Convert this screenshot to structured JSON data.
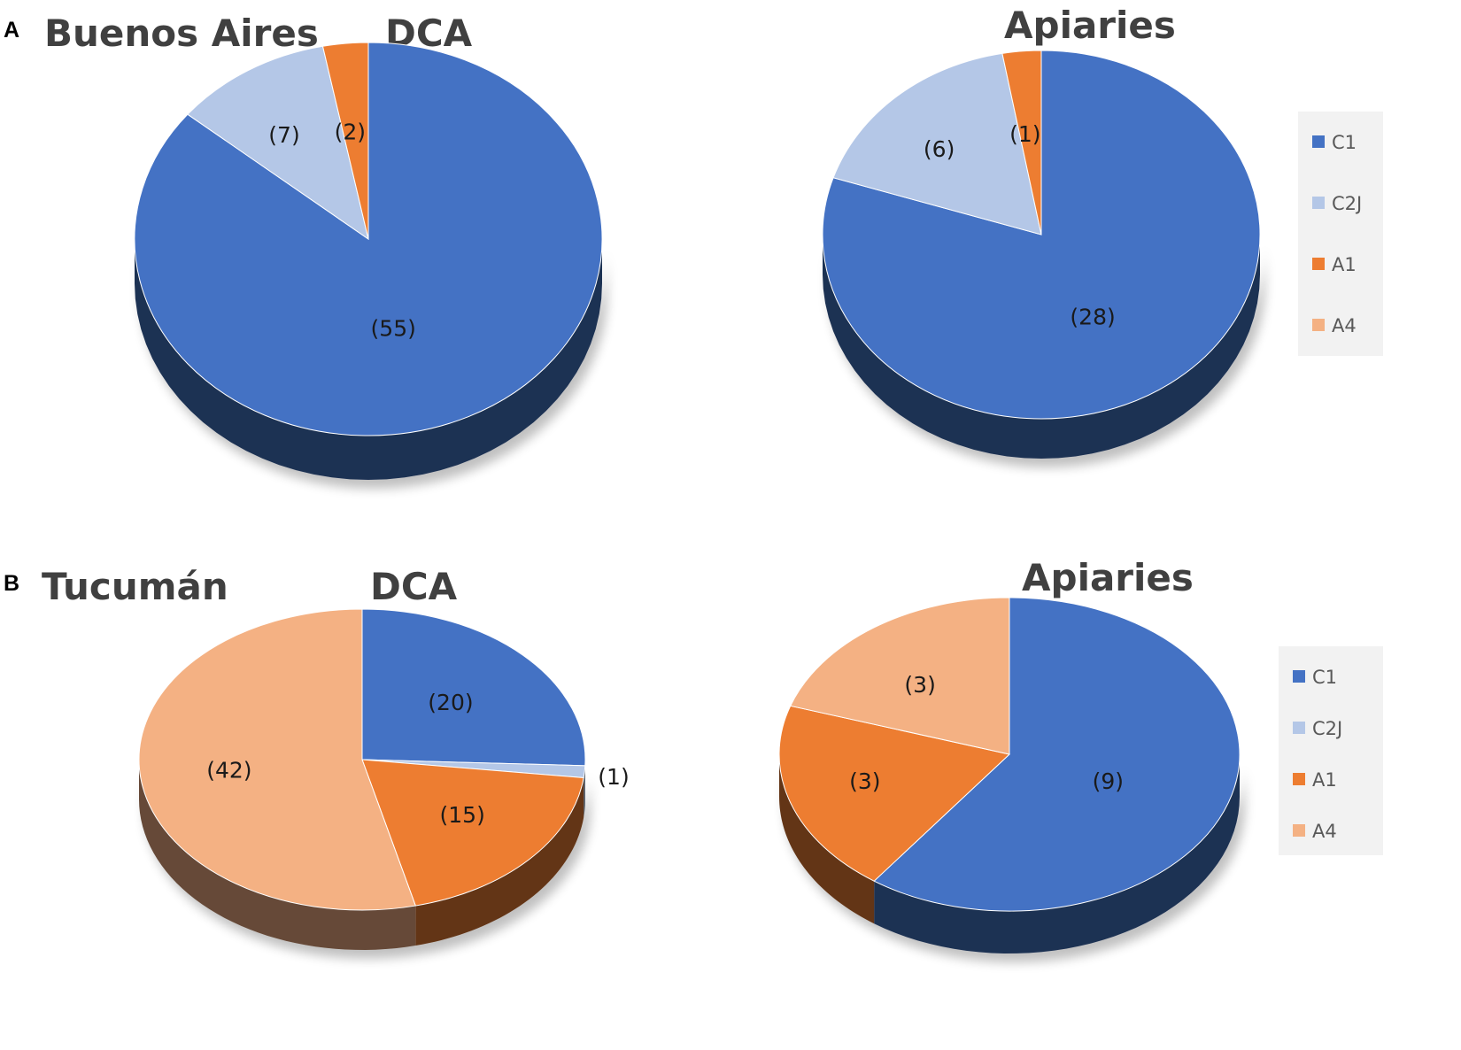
{
  "panels": [
    {
      "letter": "A",
      "region": "Buenos Aires"
    },
    {
      "letter": "B",
      "region": "Tucumán"
    }
  ],
  "legend": {
    "entries": [
      "C1",
      "C2J",
      "A1",
      "A4"
    ],
    "colors": [
      "#4472C4",
      "#B4C7E7",
      "#ED7D31",
      "#F4B183"
    ]
  },
  "chart_data": [
    {
      "type": "pie",
      "panel": "A",
      "title": "DCA",
      "categories": [
        "C1",
        "C2J",
        "A1",
        "A4"
      ],
      "values": [
        55,
        7,
        2,
        0
      ],
      "labels": [
        "(55)",
        "(7)",
        "(2)",
        ""
      ]
    },
    {
      "type": "pie",
      "panel": "A",
      "title": "Apiaries",
      "categories": [
        "C1",
        "C2J",
        "A1",
        "A4"
      ],
      "values": [
        28,
        6,
        1,
        0
      ],
      "labels": [
        "(28)",
        "(6)",
        "(1)",
        ""
      ],
      "legend": "right"
    },
    {
      "type": "pie",
      "panel": "B",
      "title": "DCA",
      "categories": [
        "C1",
        "C2J",
        "A1",
        "A4"
      ],
      "values": [
        20,
        1,
        15,
        42
      ],
      "labels": [
        "(20)",
        "(1)",
        "(15)",
        "(42)"
      ]
    },
    {
      "type": "pie",
      "panel": "B",
      "title": "Apiaries",
      "categories": [
        "C1",
        "C2J",
        "A1",
        "A4"
      ],
      "values": [
        9,
        0,
        3,
        3
      ],
      "labels": [
        "(9)",
        "",
        "(3)",
        "(3)"
      ],
      "legend": "right"
    }
  ]
}
